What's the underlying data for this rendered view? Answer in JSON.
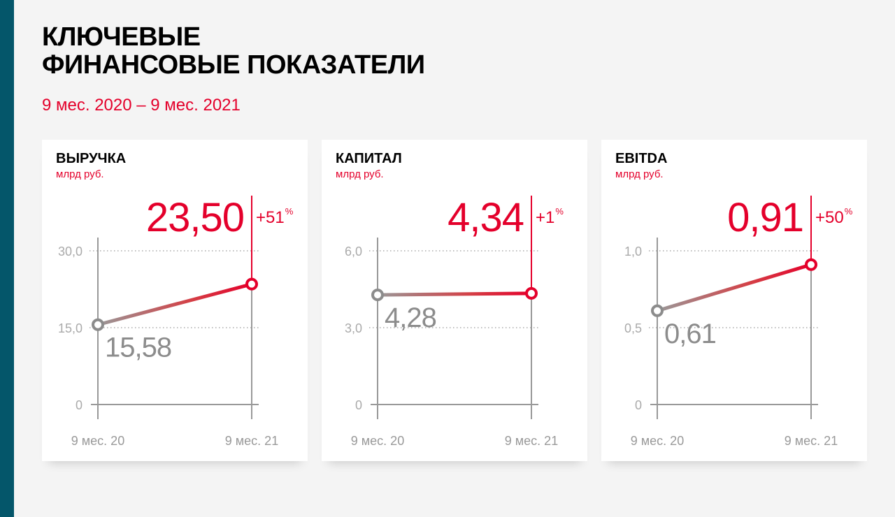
{
  "header": {
    "title_lines": [
      "КЛЮЧЕВЫЕ",
      "ФИНАНСОВЫЕ ПОКАЗАТЕЛИ"
    ],
    "period": "9 мес. 2020 – 9 мес. 2021"
  },
  "colors": {
    "accent": "#e4002b",
    "sidebar": "#04566a",
    "gray": "#8c8c8c"
  },
  "chart_data": [
    {
      "type": "line",
      "title": "ВЫРУЧКА",
      "ylabel": "млрд руб.",
      "categories": [
        "9 мес. 20",
        "9 мес. 21"
      ],
      "values": [
        15.58,
        23.5
      ],
      "value_labels": [
        "15,58",
        "23,50"
      ],
      "change": "+51",
      "change_unit": "%",
      "yticks": [
        0,
        15,
        30
      ],
      "ytick_labels": [
        "0",
        "15,0",
        "30,0"
      ],
      "ylim": [
        0,
        30
      ]
    },
    {
      "type": "line",
      "title": "КАПИТАЛ",
      "ylabel": "млрд руб.",
      "categories": [
        "9 мес. 20",
        "9 мес. 21"
      ],
      "values": [
        4.28,
        4.34
      ],
      "value_labels": [
        "4,28",
        "4,34"
      ],
      "change": "+1",
      "change_unit": "%",
      "yticks": [
        0,
        3,
        6
      ],
      "ytick_labels": [
        "0",
        "3,0",
        "6,0"
      ],
      "ylim": [
        0,
        6
      ]
    },
    {
      "type": "line",
      "title": "EBITDA",
      "ylabel": "млрд руб.",
      "categories": [
        "9 мес. 20",
        "9 мес. 21"
      ],
      "values": [
        0.61,
        0.91
      ],
      "value_labels": [
        "0,61",
        "0,91"
      ],
      "change": "+50",
      "change_unit": "%",
      "yticks": [
        0,
        0.5,
        1.0
      ],
      "ytick_labels": [
        "0",
        "0,5",
        "1,0"
      ],
      "ylim": [
        0,
        1.0
      ]
    }
  ]
}
